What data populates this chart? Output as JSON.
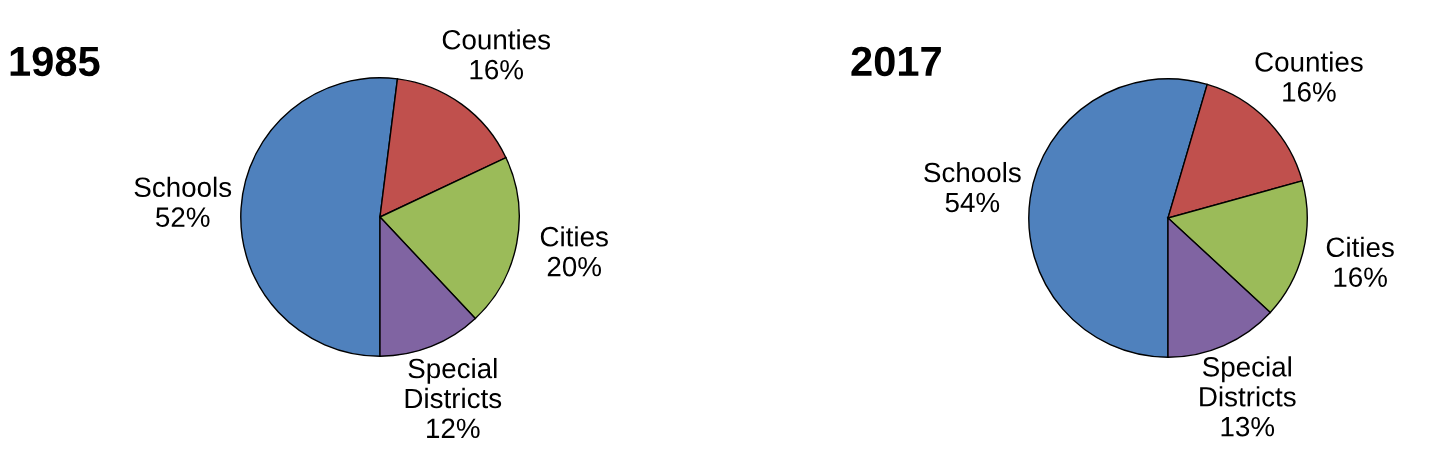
{
  "chart_data": [
    {
      "type": "pie",
      "title": "1985",
      "categories": [
        "Schools",
        "Counties",
        "Cities",
        "Special\nDistricts"
      ],
      "values": [
        52,
        16,
        20,
        12
      ],
      "value_labels": [
        "52%",
        "16%",
        "20%",
        "12%"
      ],
      "colors": [
        "#4f81bd",
        "#c0504d",
        "#9bbb59",
        "#8064a2"
      ]
    },
    {
      "type": "pie",
      "title": "2017",
      "categories": [
        "Schools",
        "Counties",
        "Cities",
        "Special\nDistricts"
      ],
      "values": [
        54,
        16,
        16,
        13
      ],
      "value_labels": [
        "54%",
        "16%",
        "16%",
        "13%"
      ],
      "colors": [
        "#4f81bd",
        "#c0504d",
        "#9bbb59",
        "#8064a2"
      ]
    }
  ]
}
